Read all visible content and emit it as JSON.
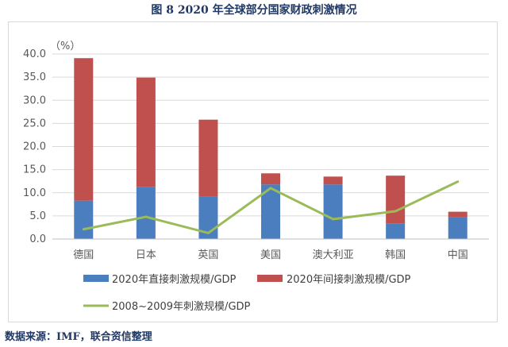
{
  "figure_title": "图 8   2020 年全球部分国家财政刺激情况",
  "source_note": "数据来源：IMF，联合资信整理",
  "chart_data": {
    "type": "bar",
    "stacked": true,
    "unit_label": "（%）",
    "categories": [
      "德国",
      "日本",
      "英国",
      "美国",
      "澳大利亚",
      "韩国",
      "中国"
    ],
    "ylim": [
      0,
      40
    ],
    "yticks": [
      "0.0",
      "5.0",
      "10.0",
      "15.0",
      "20.0",
      "25.0",
      "30.0",
      "35.0",
      "40.0"
    ],
    "grid": true,
    "legend_position": "bottom",
    "series": [
      {
        "name": "2020年直接刺激规模/GDP",
        "type": "bar",
        "color": "#4a7ebf",
        "values": [
          8.3,
          11.3,
          9.2,
          11.8,
          11.8,
          3.4,
          4.7
        ]
      },
      {
        "name": "2020年间接刺激规模/GDP",
        "type": "bar",
        "color": "#c0504d",
        "values": [
          30.8,
          23.6,
          16.6,
          2.4,
          1.7,
          10.3,
          1.2
        ]
      },
      {
        "name": "2008~2009年刺激规模/GDP",
        "type": "line",
        "color": "#9bbb59",
        "values": [
          2.1,
          4.8,
          1.3,
          11.0,
          4.3,
          6.0,
          12.4
        ]
      }
    ]
  }
}
